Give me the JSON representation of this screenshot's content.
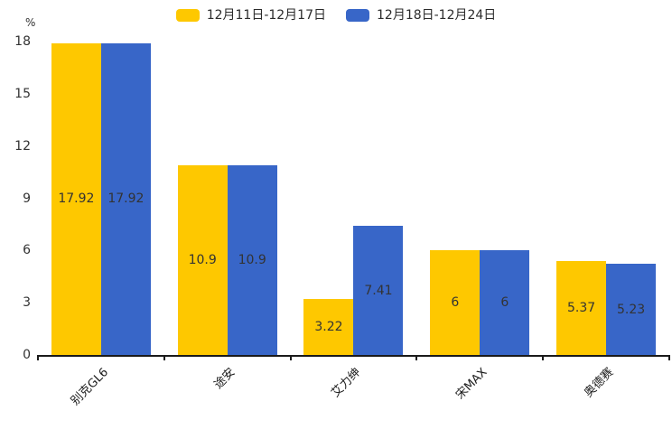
{
  "chart_data": {
    "type": "bar",
    "title": "",
    "categories": [
      "别克GL6",
      "途安",
      "艾力绅",
      "宋MAX",
      "奥德赛"
    ],
    "series": [
      {
        "name": "12月11日-12月17日",
        "color": "#FEC800",
        "values": [
          17.92,
          10.9,
          3.22,
          6,
          5.37
        ]
      },
      {
        "name": "12月18日-12月24日",
        "color": "#3866C8",
        "values": [
          17.92,
          10.9,
          7.41,
          6,
          5.23
        ]
      }
    ],
    "ylabel": "%",
    "yticks": [
      0,
      3,
      6,
      9,
      12,
      15,
      18
    ],
    "ylim": [
      0,
      18
    ],
    "grid": false,
    "legend_position": "top",
    "value_label_position": "inside-center",
    "colors": {
      "axis": "#1a1a1a",
      "tick_label": "#333333",
      "value_label": "#333333",
      "background": "#ffffff"
    }
  }
}
